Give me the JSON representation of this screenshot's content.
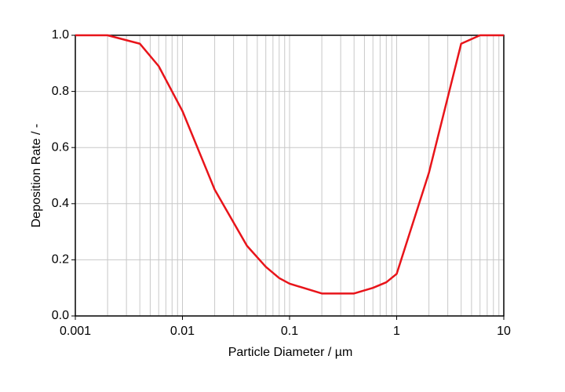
{
  "chart_data": {
    "type": "line",
    "xscale": "log",
    "grid": true,
    "xlabel": "Particle Diameter / µm",
    "ylabel": "Deposition Rate / -",
    "xlim": [
      0.001,
      10
    ],
    "ylim": [
      0,
      1
    ],
    "xticks": [
      0.001,
      0.01,
      0.1,
      1,
      10
    ],
    "xminorticks": [
      0.002,
      0.003,
      0.004,
      0.005,
      0.006,
      0.007,
      0.008,
      0.009,
      0.02,
      0.03,
      0.04,
      0.05,
      0.06,
      0.07,
      0.08,
      0.09,
      0.2,
      0.3,
      0.4,
      0.5,
      0.6,
      0.7,
      0.8,
      0.9,
      2,
      3,
      4,
      5,
      6,
      7,
      8,
      9
    ],
    "yticks": [
      {
        "value": 0,
        "label": "0.0"
      },
      {
        "value": 0.2,
        "label": "0.2"
      },
      {
        "value": 0.4,
        "label": "0.4"
      },
      {
        "value": 0.6,
        "label": "0.6"
      },
      {
        "value": 0.8,
        "label": "0.8"
      },
      {
        "value": 1,
        "label": "1.0"
      }
    ],
    "x": [
      0.001,
      0.002,
      0.004,
      0.006,
      0.01,
      0.02,
      0.04,
      0.06,
      0.08,
      0.1,
      0.2,
      0.4,
      0.6,
      0.8,
      1,
      2,
      4,
      6,
      10
    ],
    "series": [
      {
        "color": "#e8141a",
        "values": [
          1.0,
          1.0,
          0.97,
          0.89,
          0.73,
          0.45,
          0.25,
          0.175,
          0.135,
          0.115,
          0.08,
          0.08,
          0.1,
          0.12,
          0.15,
          0.51,
          0.97,
          1.0,
          1.0
        ]
      }
    ]
  }
}
